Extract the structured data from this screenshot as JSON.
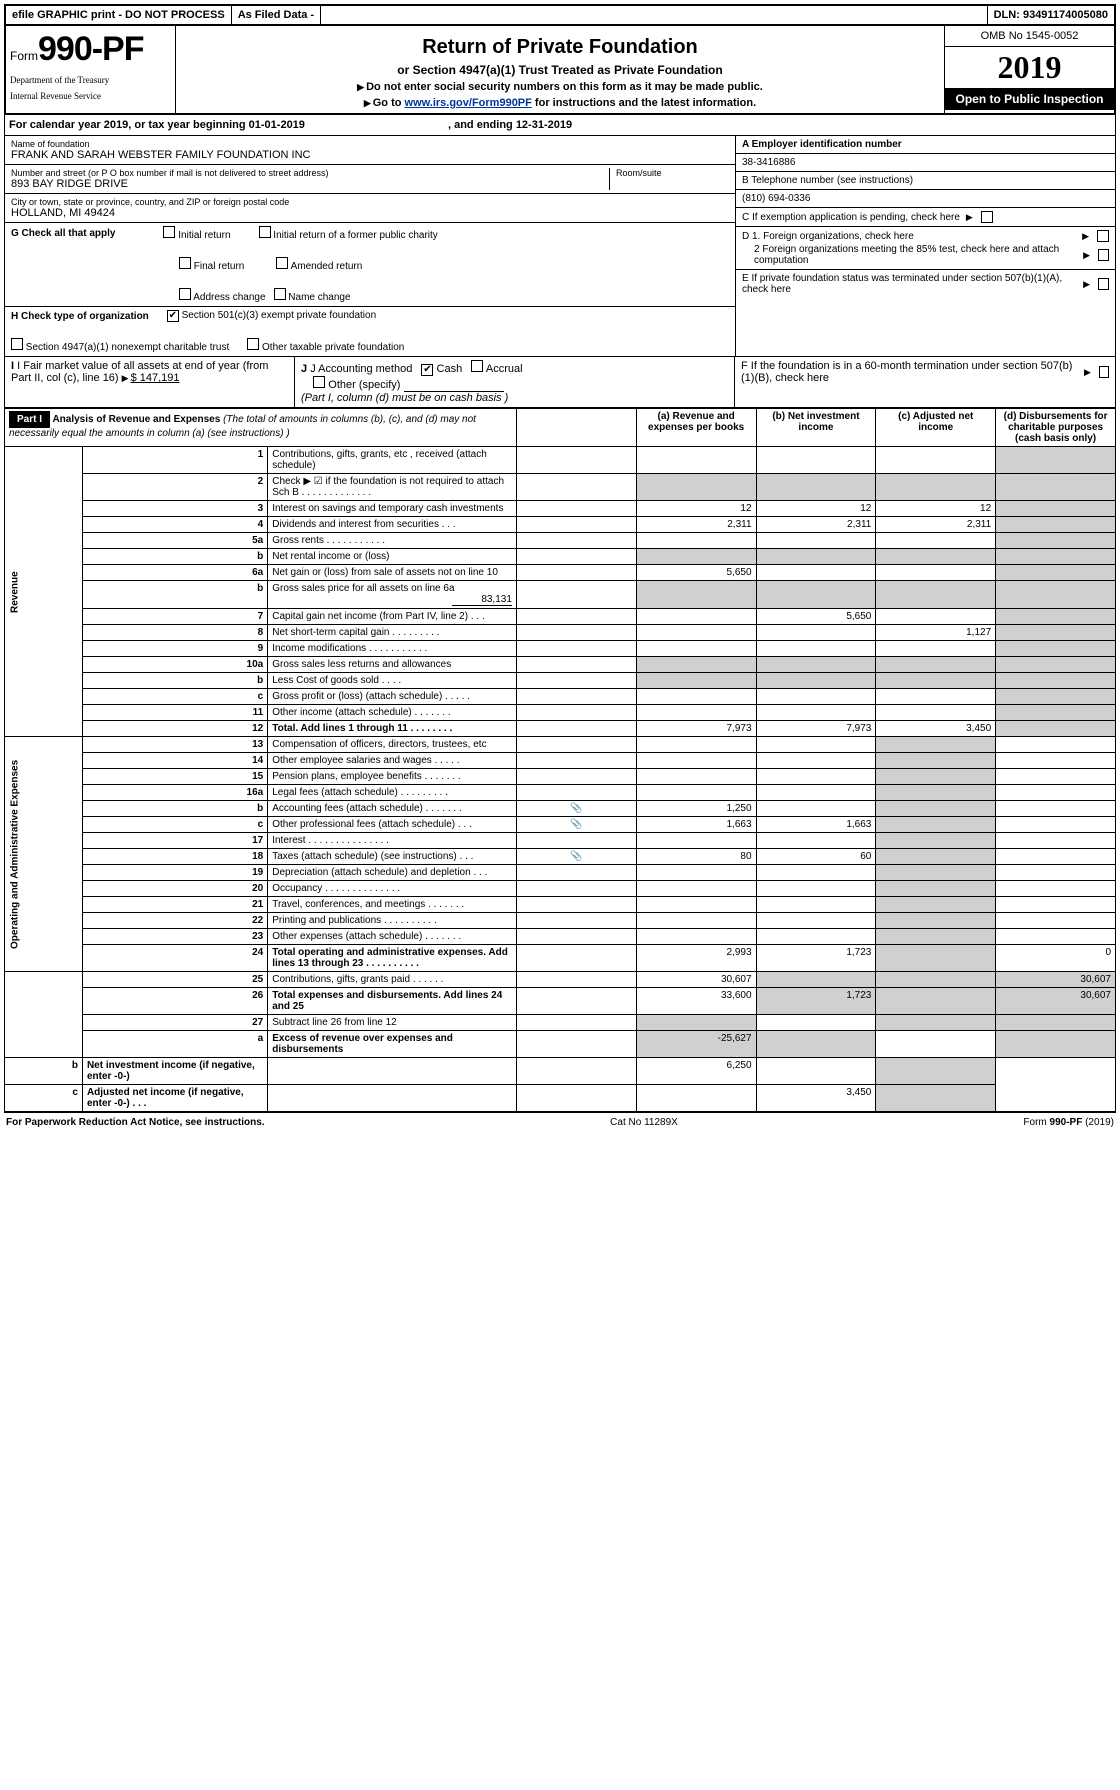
{
  "header_bar": {
    "efile": "efile GRAPHIC print - DO NOT PROCESS",
    "as_filed": "As Filed Data -",
    "dln_label": "DLN:",
    "dln": "93491174005080"
  },
  "form_head": {
    "form_label": "Form",
    "form_no": "990-PF",
    "dept1": "Department of the Treasury",
    "dept2": "Internal Revenue Service",
    "title": "Return of Private Foundation",
    "subtitle": "or Section 4947(a)(1) Trust Treated as Private Foundation",
    "instr1": "Do not enter social security numbers on this form as it may be made public.",
    "instr2_pre": "Go to ",
    "instr2_link": "www.irs.gov/Form990PF",
    "instr2_post": " for instructions and the latest information.",
    "omb": "OMB No 1545-0052",
    "year": "2019",
    "open": "Open to Public Inspection"
  },
  "cal_year": {
    "text": "For calendar year 2019, or tax year beginning 01-01-2019",
    "ending": ", and ending 12-31-2019"
  },
  "entity": {
    "name_lbl": "Name of foundation",
    "name": "FRANK AND SARAH WEBSTER FAMILY FOUNDATION INC",
    "addr_lbl": "Number and street (or P O  box number if mail is not delivered to street address)",
    "addr": "893 BAY RIDGE DRIVE",
    "room_lbl": "Room/suite",
    "city_lbl": "City or town, state or province, country, and ZIP or foreign postal code",
    "city": "HOLLAND, MI  49424",
    "a_lbl": "A Employer identification number",
    "a_val": "38-3416886",
    "b_lbl": "B Telephone number (see instructions)",
    "b_val": "(810) 694-0336",
    "c_lbl": "C If exemption application is pending, check here",
    "d1": "D 1. Foreign organizations, check here",
    "d2": "2 Foreign organizations meeting the 85% test, check here and attach computation",
    "e": "E  If private foundation status was terminated under section 507(b)(1)(A), check here",
    "f": "F  If the foundation is in a 60-month termination under section 507(b)(1)(B), check here"
  },
  "g": {
    "lbl": "G Check all that apply",
    "opts": [
      "Initial return",
      "Initial return of a former public charity",
      "Final return",
      "Amended return",
      "Address change",
      "Name change"
    ]
  },
  "h": {
    "lbl": "H Check type of organization",
    "opt1": "Section 501(c)(3) exempt private foundation",
    "opt2": "Section 4947(a)(1) nonexempt charitable trust",
    "opt3": "Other taxable private foundation"
  },
  "i": {
    "lbl": "I Fair market value of all assets at end of year (from Part II, col  (c), line 16)",
    "val": "$  147,191"
  },
  "j": {
    "lbl": "J Accounting method",
    "cash": "Cash",
    "accrual": "Accrual",
    "other": "Other (specify)",
    "note": "(Part I, column (d) must be on cash basis )"
  },
  "part1": {
    "label": "Part I",
    "title": "Analysis of Revenue and Expenses",
    "title_note": "(The total of amounts in columns (b), (c), and (d) may not necessarily equal the amounts in column (a) (see instructions) )",
    "cols": {
      "a": "(a)   Revenue and expenses per books",
      "b": "(b)  Net investment income",
      "c": "(c)  Adjusted net income",
      "d": "(d)  Disbursements for charitable purposes (cash basis only)"
    },
    "side_rev": "Revenue",
    "side_exp": "Operating and Administrative Expenses",
    "rows": [
      {
        "n": "1",
        "d": "Contributions, gifts, grants, etc , received (attach schedule)"
      },
      {
        "n": "2",
        "d": "Check ▶ ☑ if the foundation is not required to attach Sch B         .   .   .   .   .   .   .   .   .   .   .   .   ."
      },
      {
        "n": "3",
        "d": "Interest on savings and temporary cash investments",
        "a": "12",
        "b": "12",
        "c": "12"
      },
      {
        "n": "4",
        "d": "Dividends and interest from securities     .   .   .",
        "a": "2,311",
        "b": "2,311",
        "c": "2,311"
      },
      {
        "n": "5a",
        "d": "Gross rents       .   .   .   .   .   .   .   .   .   .   ."
      },
      {
        "n": "b",
        "d": "Net rental income or (loss)  "
      },
      {
        "n": "6a",
        "d": "Net gain or (loss) from sale of assets not on line 10",
        "a": "5,650"
      },
      {
        "n": "b",
        "d": "Gross sales price for all assets on line 6a",
        "extra": "83,131"
      },
      {
        "n": "7",
        "d": "Capital gain net income (from Part IV, line 2)   .   .   .",
        "b": "5,650"
      },
      {
        "n": "8",
        "d": "Net short-term capital gain  .   .   .   .   .   .   .   .   .",
        "c": "1,127"
      },
      {
        "n": "9",
        "d": "Income modifications .   .   .   .   .   .   .   .   .   .   ."
      },
      {
        "n": "10a",
        "d": "Gross sales less returns and allowances"
      },
      {
        "n": "b",
        "d": "Less  Cost of goods sold    .   .   .   ."
      },
      {
        "n": "c",
        "d": "Gross profit or (loss) (attach schedule)    .   .   .   .   ."
      },
      {
        "n": "11",
        "d": "Other income (attach schedule)    .   .   .   .   .   .   ."
      },
      {
        "n": "12",
        "d": "Total. Add lines 1 through 11   .   .   .   .   .   .   .   .",
        "a": "7,973",
        "b": "7,973",
        "c": "3,450",
        "bold": true
      },
      {
        "n": "13",
        "d": "Compensation of officers, directors, trustees, etc "
      },
      {
        "n": "14",
        "d": "Other employee salaries and wages     .   .   .   .   ."
      },
      {
        "n": "15",
        "d": "Pension plans, employee benefits  .   .   .   .   .   .   ."
      },
      {
        "n": "16a",
        "d": "Legal fees (attach schedule) .   .   .   .   .   .   .   .   ."
      },
      {
        "n": "b",
        "d": "Accounting fees (attach schedule) .   .   .   .   .   .   .",
        "a": "1,250",
        "clip": true
      },
      {
        "n": "c",
        "d": "Other professional fees (attach schedule)   .   .   .",
        "a": "1,663",
        "b": "1,663",
        "clip": true
      },
      {
        "n": "17",
        "d": "Interest .   .   .   .   .   .   .   .   .   .   .   .   .   .   ."
      },
      {
        "n": "18",
        "d": "Taxes (attach schedule) (see instructions)    .   .   .",
        "a": "80",
        "b": "60",
        "clip": true
      },
      {
        "n": "19",
        "d": "Depreciation (attach schedule) and depletion   .   .   ."
      },
      {
        "n": "20",
        "d": "Occupancy  .   .   .   .   .   .   .   .   .   .   .   .   .   ."
      },
      {
        "n": "21",
        "d": "Travel, conferences, and meetings .   .   .   .   .   .   ."
      },
      {
        "n": "22",
        "d": "Printing and publications .   .   .   .   .   .   .   .   .   ."
      },
      {
        "n": "23",
        "d": "Other expenses (attach schedule) .   .   .   .   .   .   ."
      },
      {
        "n": "24",
        "d": "Total operating and administrative expenses. Add lines 13 through 23  .   .   .   .   .   .   .   .   .   .",
        "a": "2,993",
        "b": "1,723",
        "dd": "0",
        "bold": true
      },
      {
        "n": "25",
        "d": "Contributions, gifts, grants paid      .   .   .   .   .   .",
        "a": "30,607",
        "dd": "30,607"
      },
      {
        "n": "26",
        "d": "Total expenses and disbursements. Add lines 24 and 25",
        "a": "33,600",
        "b": "1,723",
        "dd": "30,607",
        "bold": true
      },
      {
        "n": "27",
        "d": "Subtract line 26 from line 12"
      },
      {
        "n": "a",
        "d": "Excess of revenue over expenses and disbursements",
        "a": "-25,627",
        "bold": true
      },
      {
        "n": "b",
        "d": "Net investment income (if negative, enter -0-)",
        "b": "6,250",
        "bold": true
      },
      {
        "n": "c",
        "d": "Adjusted net income (if negative, enter -0-)   .   .   .",
        "c": "3,450",
        "bold": true
      }
    ]
  },
  "footer": {
    "left": "For Paperwork Reduction Act Notice, see instructions.",
    "mid": "Cat No 11289X",
    "right": "Form 990-PF (2019)"
  }
}
